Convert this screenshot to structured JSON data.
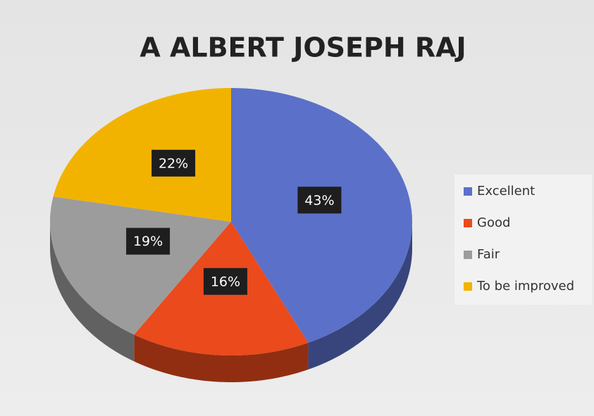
{
  "chart_data": {
    "type": "pie",
    "title": "A ALBERT JOSEPH RAJ",
    "categories": [
      "Excellent",
      "Good",
      "Fair",
      "To be improved"
    ],
    "values": [
      43,
      16,
      19,
      22
    ],
    "value_labels": [
      "43%",
      "16%",
      "19%",
      "22%"
    ],
    "colors": [
      "#5b70c8",
      "#ea4a1c",
      "#9c9c9c",
      "#f2b300"
    ],
    "legend": "right"
  }
}
